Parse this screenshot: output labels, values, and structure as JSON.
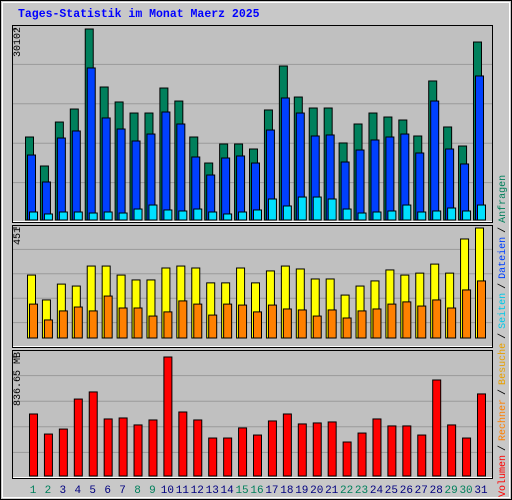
{
  "chart_data": [
    {
      "type": "bar",
      "title": "Tages-Statistik im Monat Maerz 2025",
      "ylim": [
        0,
        30102
      ],
      "yticks": [
        30102
      ],
      "series": [
        {
          "name": "Anfragen",
          "color": "#00805c",
          "label_color": "#00805c",
          "values": [
            13080,
            8510,
            15440,
            17490,
            30102,
            20960,
            18600,
            16860,
            16860,
            20800,
            18750,
            13080,
            8980,
            11980,
            11980,
            11190,
            17340,
            24270,
            19380,
            17650,
            17650,
            12140,
            15130,
            16860,
            16230,
            15760,
            13240,
            21910,
            14660,
            11660,
            28050
          ]
        },
        {
          "name": "Dateien",
          "color": "#0040ff",
          "label_color": "#0040ff",
          "values": [
            10240,
            5990,
            12920,
            14030,
            23960,
            16080,
            14340,
            12450,
            13550,
            17020,
            15130,
            9930,
            7090,
            9770,
            10090,
            8980,
            14180,
            19230,
            16860,
            13240,
            13400,
            9140,
            11030,
            12610,
            13080,
            13550,
            10560,
            18750,
            11190,
            8830,
            22700
          ]
        },
        {
          "name": "Seiten",
          "color": "#00e0ff",
          "label_color": "#00c8e8",
          "values": [
            1260,
            950,
            1260,
            1260,
            1100,
            1260,
            1100,
            1730,
            2360,
            1580,
            1420,
            1730,
            1260,
            950,
            1260,
            1580,
            3310,
            2210,
            3620,
            3620,
            3310,
            1730,
            1100,
            1260,
            1420,
            2360,
            1260,
            1420,
            1890,
            1420,
            2360
          ]
        }
      ]
    },
    {
      "type": "bar",
      "ylim": [
        0,
        451
      ],
      "yticks": [
        451
      ],
      "series": [
        {
          "name": "Besuche",
          "color": "#ffff00",
          "label_color": "#e8a000",
          "values": [
            258,
            156,
            221,
            213,
            295,
            295,
            258,
            238,
            238,
            287,
            295,
            287,
            226,
            226,
            287,
            226,
            275,
            295,
            283,
            242,
            242,
            176,
            213,
            234,
            279,
            258,
            266,
            303,
            266,
            406,
            451
          ]
        },
        {
          "name": "Rechner",
          "color": "#ff8000",
          "label_color": "#ff8000",
          "values": [
            139,
            74,
            111,
            127,
            111,
            172,
            123,
            123,
            90,
            107,
            152,
            139,
            94,
            139,
            135,
            107,
            135,
            119,
            115,
            90,
            115,
            82,
            111,
            119,
            139,
            148,
            131,
            156,
            123,
            197,
            234
          ]
        }
      ]
    },
    {
      "type": "bar",
      "ylim": [
        0,
        836.65
      ],
      "yticks": [
        {
          "value": 836.65,
          "label": "836.65 MB"
        }
      ],
      "legend_separator": "/",
      "categories": [
        "1",
        "2",
        "3",
        "4",
        "5",
        "6",
        "7",
        "8",
        "9",
        "10",
        "11",
        "12",
        "13",
        "14",
        "15",
        "16",
        "17",
        "18",
        "19",
        "20",
        "21",
        "22",
        "23",
        "24",
        "25",
        "26",
        "27",
        "28",
        "29",
        "30",
        "31"
      ],
      "category_colors": [
        "#00805c",
        "#00805c",
        "#000080",
        "#000080",
        "#000080",
        "#000080",
        "#000080",
        "#00805c",
        "#00805c",
        "#000080",
        "#000080",
        "#000080",
        "#000080",
        "#000080",
        "#00805c",
        "#00805c",
        "#000080",
        "#000080",
        "#000080",
        "#000080",
        "#000080",
        "#00805c",
        "#00805c",
        "#000080",
        "#000080",
        "#000080",
        "#000080",
        "#000080",
        "#00805c",
        "#00805c",
        "#000080"
      ],
      "series": [
        {
          "name": "Volumen",
          "color": "#ff0000",
          "label_color": "#ff0000",
          "values": [
            436,
            295,
            330,
            541,
            591,
            401,
            408,
            359,
            394,
            836.65,
            450,
            394,
            267,
            267,
            338,
            288,
            387,
            436,
            366,
            373,
            380,
            239,
            302,
            401,
            352,
            352,
            288,
            675,
            359,
            267,
            577
          ]
        }
      ]
    }
  ]
}
